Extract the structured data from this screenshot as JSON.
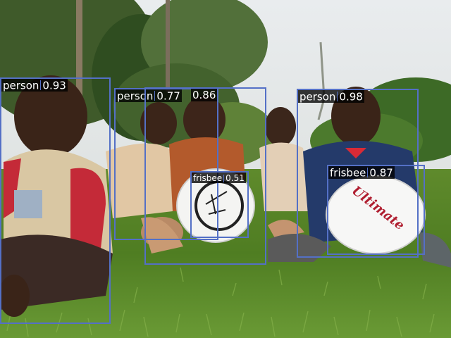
{
  "image": {
    "description_icon": "photo-scene",
    "box_color": "#5470c6",
    "label_bg": "#000000"
  },
  "detections": [
    {
      "label": "person",
      "score": "0.93"
    },
    {
      "label": "person",
      "score": "0.77"
    },
    {
      "label": "person",
      "score": "0.86"
    },
    {
      "label": "frisbee",
      "score": "0.51"
    },
    {
      "label": "person",
      "score": "0.98"
    },
    {
      "label": "frisbee",
      "score": "0.87"
    }
  ]
}
